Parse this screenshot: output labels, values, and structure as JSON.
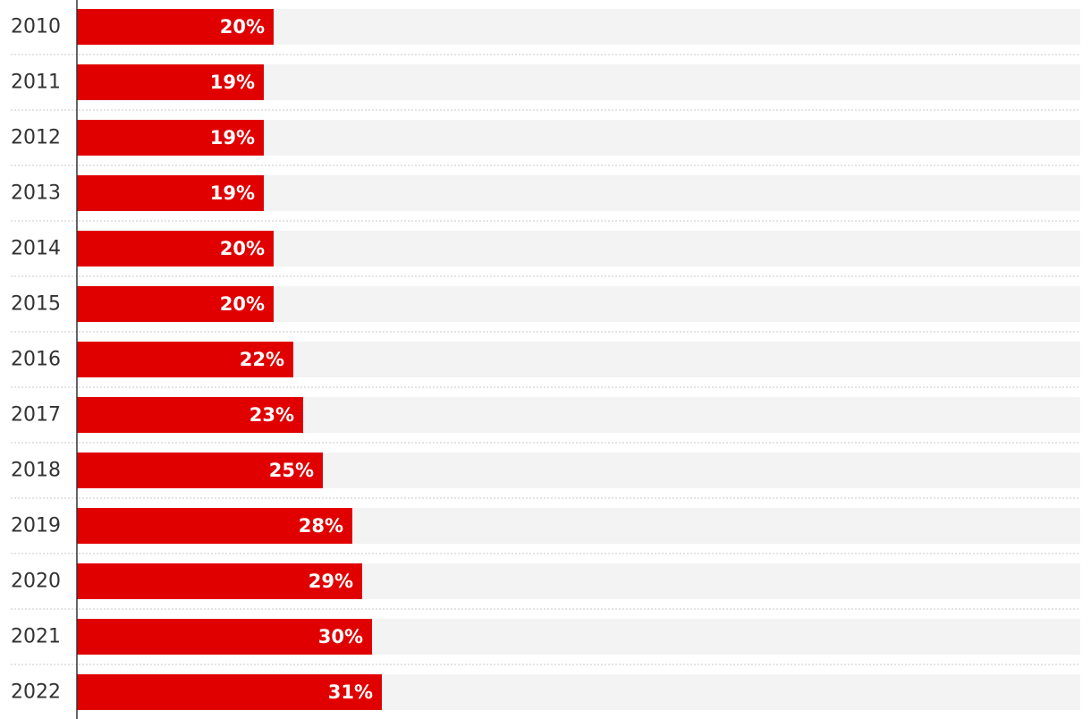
{
  "chart_data": {
    "type": "bar",
    "orientation": "horizontal",
    "categories": [
      "2010",
      "2011",
      "2012",
      "2013",
      "2014",
      "2015",
      "2016",
      "2017",
      "2018",
      "2019",
      "2020",
      "2021",
      "2022"
    ],
    "values": [
      20,
      19,
      19,
      19,
      20,
      20,
      22,
      23,
      25,
      28,
      29,
      30,
      31
    ],
    "value_labels": [
      "20%",
      "19%",
      "19%",
      "19%",
      "20%",
      "20%",
      "22%",
      "23%",
      "25%",
      "28%",
      "29%",
      "30%",
      "31%"
    ],
    "unit": "%",
    "xlim": [
      0,
      100
    ],
    "title": "",
    "xlabel": "",
    "ylabel": "",
    "grid": false,
    "legend": "none",
    "colors": {
      "bar": "#e00000",
      "track": "#f3f3f3",
      "separator": "#c8c8c8",
      "axis": "#333333",
      "label": "#333333",
      "value_label": "#ffffff"
    }
  }
}
